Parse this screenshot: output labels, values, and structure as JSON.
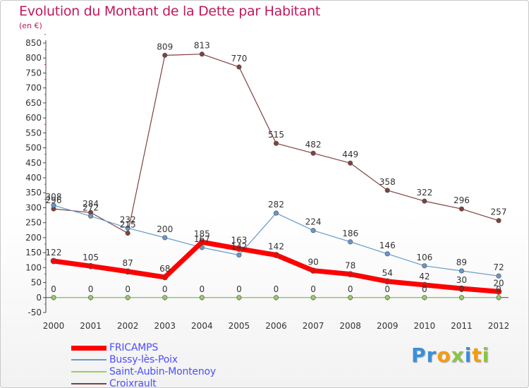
{
  "title": "Evolution du Montant de la Dette par Habitant",
  "subtitle": "(en €)",
  "logo": {
    "text": "Proxiti",
    "letters": [
      {
        "ch": "P",
        "cls": "a"
      },
      {
        "ch": "r",
        "cls": "a"
      },
      {
        "ch": "o",
        "cls": "b"
      },
      {
        "ch": "x",
        "cls": "c"
      },
      {
        "ch": "i",
        "cls": "a"
      },
      {
        "ch": "t",
        "cls": "b"
      },
      {
        "ch": "i",
        "cls": "c"
      }
    ]
  },
  "chart_data": {
    "type": "line",
    "title": "Evolution du Montant de la Dette par Habitant",
    "ylabel": "(en €)",
    "xlabel": "",
    "x": [
      "2000",
      "2001",
      "2002",
      "2003",
      "2004",
      "2005",
      "2006",
      "2007",
      "2008",
      "2009",
      "2010",
      "2011",
      "2012"
    ],
    "ylim": [
      -50,
      850
    ],
    "yticks": [
      -50,
      0,
      50,
      100,
      150,
      200,
      250,
      300,
      350,
      400,
      450,
      500,
      550,
      600,
      650,
      700,
      750,
      800,
      850
    ],
    "grid": false,
    "legend_position": "bottom-left",
    "series": [
      {
        "name": "FRICAMPS",
        "color": "#ff0000",
        "values": [
          122,
          105,
          87,
          68,
          185,
          163,
          142,
          90,
          78,
          54,
          42,
          30,
          20
        ]
      },
      {
        "name": "Bussy-lès-Poix",
        "color": "#6699cc",
        "values": [
          308,
          272,
          232,
          200,
          167,
          142,
          282,
          224,
          186,
          146,
          106,
          89,
          72
        ]
      },
      {
        "name": "Saint-Aubin-Montenoy",
        "color": "#99cc66",
        "values": [
          0,
          0,
          0,
          0,
          0,
          0,
          0,
          0,
          0,
          0,
          0,
          0,
          0
        ]
      },
      {
        "name": "Croixrault",
        "color": "#804040",
        "values": [
          296,
          284,
          215,
          809,
          813,
          770,
          515,
          482,
          449,
          358,
          322,
          296,
          257
        ]
      }
    ]
  }
}
